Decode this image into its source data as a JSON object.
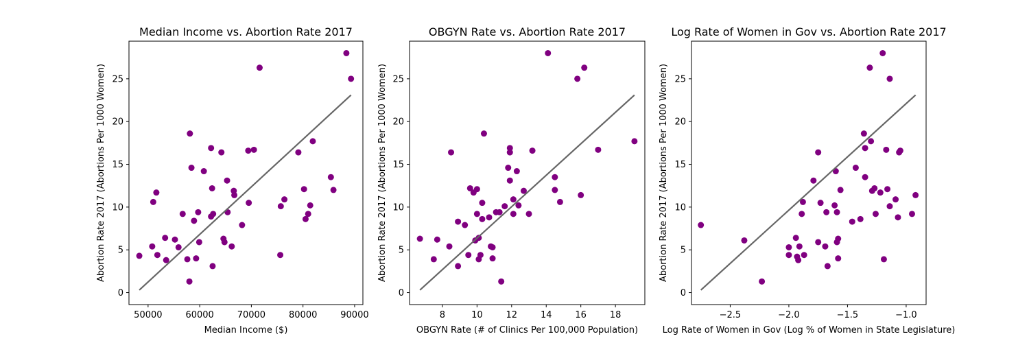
{
  "chart_data": [
    {
      "type": "scatter",
      "title": "Median Income vs. Abortion Rate 2017",
      "xlabel": "Median Income ($)",
      "ylabel": "Abortion Rate 2017 (Abortions Per 1000 Women)",
      "xlim": [
        46300,
        91600
      ],
      "ylim": [
        -1.4,
        29.4
      ],
      "xticks": [
        50000,
        60000,
        70000,
        80000,
        90000
      ],
      "xtick_labels": [
        "50000",
        "60000",
        "70000",
        "80000",
        "90000"
      ],
      "yticks": [
        0,
        5,
        10,
        15,
        20,
        25
      ],
      "ytick_labels": [
        "0",
        "5",
        "10",
        "15",
        "20",
        "25"
      ],
      "grid": false,
      "point_color": "#800080",
      "line_color": "#666666",
      "points": [
        [
          48300,
          4.3
        ],
        [
          50800,
          5.4
        ],
        [
          51000,
          10.6
        ],
        [
          51600,
          11.7
        ],
        [
          51800,
          4.4
        ],
        [
          53300,
          6.4
        ],
        [
          53500,
          3.8
        ],
        [
          55200,
          6.2
        ],
        [
          55900,
          5.3
        ],
        [
          56700,
          9.2
        ],
        [
          57600,
          3.9
        ],
        [
          58000,
          1.3
        ],
        [
          58100,
          18.6
        ],
        [
          58400,
          14.6
        ],
        [
          58900,
          8.4
        ],
        [
          59300,
          4.0
        ],
        [
          59700,
          9.4
        ],
        [
          59900,
          5.9
        ],
        [
          60800,
          14.2
        ],
        [
          62200,
          8.9
        ],
        [
          62200,
          16.9
        ],
        [
          62400,
          12.2
        ],
        [
          62500,
          3.1
        ],
        [
          62600,
          9.2
        ],
        [
          64200,
          16.4
        ],
        [
          64600,
          6.3
        ],
        [
          64800,
          5.9
        ],
        [
          65300,
          13.1
        ],
        [
          65400,
          9.4
        ],
        [
          66200,
          5.4
        ],
        [
          66600,
          11.9
        ],
        [
          66700,
          11.4
        ],
        [
          68200,
          7.9
        ],
        [
          69400,
          16.6
        ],
        [
          69500,
          10.5
        ],
        [
          70500,
          16.7
        ],
        [
          71600,
          26.3
        ],
        [
          75600,
          4.4
        ],
        [
          75700,
          10.1
        ],
        [
          76400,
          10.9
        ],
        [
          79100,
          16.4
        ],
        [
          80200,
          12.1
        ],
        [
          80500,
          8.6
        ],
        [
          81000,
          9.2
        ],
        [
          81400,
          10.2
        ],
        [
          81900,
          17.7
        ],
        [
          85400,
          13.5
        ],
        [
          85900,
          12.0
        ],
        [
          88400,
          28.0
        ],
        [
          89300,
          25.0
        ]
      ],
      "fit_line": [
        [
          48300,
          0.3
        ],
        [
          89300,
          23.1
        ]
      ]
    },
    {
      "type": "scatter",
      "title": "OBGYN Rate vs. Abortion Rate 2017",
      "xlabel": "OBGYN Rate (# of Clinics Per 100,000 Population)",
      "ylabel": "Abortion Rate 2017 (Abortions Per 1000 Women)",
      "xlim": [
        6.1,
        19.7
      ],
      "ylim": [
        -1.4,
        29.4
      ],
      "xticks": [
        8,
        10,
        12,
        14,
        16,
        18
      ],
      "xtick_labels": [
        "8",
        "10",
        "12",
        "14",
        "16",
        "18"
      ],
      "yticks": [
        0,
        5,
        10,
        15,
        20,
        25
      ],
      "ytick_labels": [
        "0",
        "5",
        "10",
        "15",
        "20",
        "25"
      ],
      "grid": false,
      "point_color": "#800080",
      "line_color": "#666666",
      "points": [
        [
          6.7,
          6.3
        ],
        [
          7.5,
          3.9
        ],
        [
          7.7,
          6.2
        ],
        [
          8.4,
          5.4
        ],
        [
          8.5,
          16.4
        ],
        [
          8.9,
          3.1
        ],
        [
          8.9,
          8.3
        ],
        [
          9.3,
          7.9
        ],
        [
          9.5,
          4.4
        ],
        [
          9.6,
          12.2
        ],
        [
          9.8,
          11.7
        ],
        [
          9.9,
          6.1
        ],
        [
          10.0,
          12.1
        ],
        [
          10.0,
          9.2
        ],
        [
          10.1,
          3.9
        ],
        [
          10.1,
          6.4
        ],
        [
          10.2,
          4.4
        ],
        [
          10.3,
          8.6
        ],
        [
          10.3,
          10.5
        ],
        [
          10.4,
          18.6
        ],
        [
          10.7,
          8.8
        ],
        [
          10.8,
          5.4
        ],
        [
          10.9,
          4.0
        ],
        [
          10.9,
          5.3
        ],
        [
          11.1,
          9.4
        ],
        [
          11.3,
          9.4
        ],
        [
          11.4,
          1.3
        ],
        [
          11.6,
          10.1
        ],
        [
          11.8,
          14.6
        ],
        [
          11.9,
          13.1
        ],
        [
          11.9,
          16.9
        ],
        [
          11.9,
          16.4
        ],
        [
          12.1,
          9.2
        ],
        [
          12.1,
          10.9
        ],
        [
          12.3,
          14.2
        ],
        [
          12.4,
          10.2
        ],
        [
          12.7,
          11.9
        ],
        [
          13.0,
          9.2
        ],
        [
          13.2,
          16.6
        ],
        [
          14.1,
          28.0
        ],
        [
          14.5,
          13.5
        ],
        [
          14.5,
          12.0
        ],
        [
          14.8,
          10.6
        ],
        [
          15.8,
          25.0
        ],
        [
          16.0,
          11.4
        ],
        [
          16.2,
          26.3
        ],
        [
          17.0,
          16.7
        ],
        [
          19.1,
          17.7
        ]
      ],
      "fit_line": [
        [
          6.7,
          0.3
        ],
        [
          19.1,
          23.1
        ]
      ]
    },
    {
      "type": "scatter",
      "title": "Log Rate of Women in Gov vs. Abortion Rate 2017",
      "xlabel": "Log Rate of Women in Gov (Log % of Women in State Legislature)",
      "ylabel": "Abortion Rate 2017 (Abortions Per 1000 Women)",
      "xlim": [
        -2.83,
        -0.83
      ],
      "ylim": [
        -1.4,
        29.4
      ],
      "xticks": [
        -2.5,
        -2.0,
        -1.5,
        -1.0
      ],
      "xtick_labels": [
        "−2.5",
        "−2.0",
        "−1.5",
        "−1.0"
      ],
      "yticks": [
        0,
        5,
        10,
        15,
        20,
        25
      ],
      "ytick_labels": [
        "0",
        "5",
        "10",
        "15",
        "20",
        "25"
      ],
      "grid": false,
      "point_color": "#800080",
      "line_color": "#666666",
      "points": [
        [
          -2.75,
          7.9
        ],
        [
          -2.38,
          6.1
        ],
        [
          -2.23,
          1.3
        ],
        [
          -2.0,
          4.4
        ],
        [
          -2.0,
          5.3
        ],
        [
          -1.94,
          6.4
        ],
        [
          -1.93,
          4.2
        ],
        [
          -1.92,
          3.8
        ],
        [
          -1.91,
          5.4
        ],
        [
          -1.89,
          9.2
        ],
        [
          -1.88,
          10.6
        ],
        [
          -1.87,
          4.4
        ],
        [
          -1.79,
          13.1
        ],
        [
          -1.75,
          16.4
        ],
        [
          -1.75,
          5.9
        ],
        [
          -1.73,
          10.5
        ],
        [
          -1.69,
          5.4
        ],
        [
          -1.68,
          9.4
        ],
        [
          -1.67,
          3.1
        ],
        [
          -1.61,
          10.2
        ],
        [
          -1.6,
          14.2
        ],
        [
          -1.59,
          9.4
        ],
        [
          -1.59,
          5.9
        ],
        [
          -1.58,
          6.3
        ],
        [
          -1.58,
          4.0
        ],
        [
          -1.56,
          12.0
        ],
        [
          -1.46,
          8.3
        ],
        [
          -1.43,
          14.6
        ],
        [
          -1.39,
          8.6
        ],
        [
          -1.36,
          18.6
        ],
        [
          -1.35,
          13.5
        ],
        [
          -1.35,
          16.9
        ],
        [
          -1.31,
          26.3
        ],
        [
          -1.3,
          17.7
        ],
        [
          -1.29,
          11.9
        ],
        [
          -1.27,
          12.2
        ],
        [
          -1.26,
          9.2
        ],
        [
          -1.22,
          11.7
        ],
        [
          -1.2,
          28.0
        ],
        [
          -1.19,
          3.9
        ],
        [
          -1.17,
          16.7
        ],
        [
          -1.16,
          12.1
        ],
        [
          -1.14,
          10.1
        ],
        [
          -1.14,
          25.0
        ],
        [
          -1.09,
          10.9
        ],
        [
          -1.07,
          8.8
        ],
        [
          -1.06,
          16.4
        ],
        [
          -1.05,
          16.6
        ],
        [
          -0.95,
          9.2
        ],
        [
          -0.92,
          11.4
        ]
      ],
      "fit_line": [
        [
          -2.75,
          0.3
        ],
        [
          -0.92,
          23.1
        ]
      ]
    }
  ]
}
